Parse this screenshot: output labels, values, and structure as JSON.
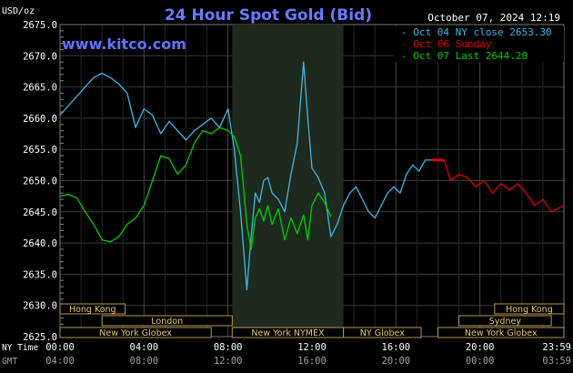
{
  "chart_data": {
    "type": "line",
    "title": "24 Hour Spot Gold (Bid)",
    "timestamp": "October 07, 2024 12:19",
    "watermark": "www.kitco.com",
    "ylabel": "USD/oz",
    "ylim": [
      2625.0,
      2675.0
    ],
    "yticks": [
      "2675.0",
      "2670.0",
      "2665.0",
      "2660.0",
      "2655.0",
      "2650.0",
      "2645.0",
      "2640.0",
      "2635.0",
      "2630.0",
      "2625.0"
    ],
    "xlim": [
      0,
      24
    ],
    "x_axis_rows": [
      {
        "label": "NY Time",
        "ticks": [
          "00:00",
          "04:00",
          "08:00",
          "12:00",
          "16:00",
          "20:00",
          "23:59"
        ]
      },
      {
        "label": "GMT",
        "ticks": [
          "04:00",
          "08:00",
          "12:00",
          "16:00",
          "20:00",
          "00:00",
          "03:59"
        ]
      }
    ],
    "tick_hours": [
      0,
      4,
      8,
      12,
      16,
      20,
      23.983
    ],
    "highlight_band_hours": [
      8.2,
      13.5
    ],
    "legend_position": "top-right",
    "grid": true,
    "series": [
      {
        "name": "Oct 04 NY close 2653.30",
        "color": "#3ab8e8",
        "x": [
          0,
          0.4,
          0.8,
          1.2,
          1.6,
          2.0,
          2.4,
          2.8,
          3.2,
          3.6,
          4.0,
          4.4,
          4.8,
          5.2,
          5.6,
          6.0,
          6.4,
          6.8,
          7.2,
          7.6,
          8.0,
          8.3,
          8.6,
          8.9,
          9.1,
          9.3,
          9.5,
          9.7,
          9.9,
          10.1,
          10.4,
          10.7,
          11.0,
          11.3,
          11.6,
          11.8,
          12.0,
          12.3,
          12.6,
          12.9,
          13.2,
          13.5,
          13.8,
          14.1,
          14.4,
          14.7,
          15.0,
          15.3,
          15.6,
          15.9,
          16.2,
          16.5,
          16.8,
          17.1,
          17.4,
          17.7
        ],
        "y": [
          2660.5,
          2662,
          2663.5,
          2665,
          2666.5,
          2667.2,
          2666.5,
          2665.5,
          2664,
          2658.5,
          2661.5,
          2660.5,
          2657.5,
          2659.5,
          2658,
          2656.5,
          2658,
          2659,
          2660,
          2658.5,
          2661.5,
          2655,
          2645,
          2632.5,
          2641,
          2648,
          2646.5,
          2650,
          2650.5,
          2648,
          2647,
          2645,
          2651,
          2656,
          2669,
          2660,
          2652,
          2650.5,
          2648,
          2641,
          2643,
          2646,
          2648,
          2649,
          2647,
          2645,
          2644,
          2646,
          2648,
          2649,
          2648,
          2651,
          2652.5,
          2651.5,
          2653.3,
          2653.3
        ]
      },
      {
        "name": "Oct 06 Sunday",
        "color": "#e00000",
        "x": [
          17.7,
          17.8,
          18.3,
          18.6,
          19.0,
          19.4,
          19.8,
          20.2,
          20.6,
          21.0,
          21.4,
          21.8,
          22.2,
          22.6,
          23.0,
          23.4,
          23.7,
          24.0
        ],
        "y": [
          2653.3,
          2653.3,
          2653.3,
          2650,
          2651,
          2650.5,
          2649,
          2650,
          2648,
          2649.5,
          2648.5,
          2649.5,
          2648,
          2646,
          2647,
          2645,
          2645.5,
          2646
        ]
      },
      {
        "name": "Oct 07 Last 2644.20",
        "color": "#00d000",
        "x": [
          0,
          0.4,
          0.8,
          1.2,
          1.6,
          2.0,
          2.4,
          2.8,
          3.2,
          3.6,
          4.0,
          4.4,
          4.8,
          5.2,
          5.6,
          6.0,
          6.4,
          6.8,
          7.2,
          7.6,
          8.0,
          8.3,
          8.6,
          8.9,
          9.1,
          9.3,
          9.5,
          9.7,
          9.9,
          10.1,
          10.4,
          10.7,
          11.0,
          11.3,
          11.6,
          11.8,
          12.0,
          12.3,
          12.6,
          12.9
        ],
        "y": [
          2647.5,
          2647.8,
          2647.2,
          2645,
          2643,
          2640.5,
          2640.2,
          2641,
          2643,
          2644,
          2646,
          2650,
          2654,
          2653.5,
          2651,
          2652.5,
          2656,
          2658,
          2657.5,
          2658.5,
          2658,
          2657,
          2654,
          2643,
          2639,
          2644,
          2645.5,
          2643.5,
          2646,
          2643,
          2645.5,
          2640.5,
          2644,
          2641.5,
          2644.5,
          2640.5,
          2646,
          2648,
          2646.5,
          2644.2
        ]
      }
    ],
    "sessions": [
      {
        "label": "Hong Kong",
        "start": 0,
        "end": 3.1,
        "row": 0
      },
      {
        "label": "London",
        "start": 2.0,
        "end": 8.2,
        "row": 1
      },
      {
        "label": "New York Globex",
        "start": 0,
        "end": 7.2,
        "row": 2
      },
      {
        "label": "New York NYMEX",
        "start": 8.2,
        "end": 13.5,
        "row": 2
      },
      {
        "label": "NY Globex",
        "start": 13.5,
        "end": 17.2,
        "row": 2
      },
      {
        "label": "Hong Kong",
        "start": 20.7,
        "end": 24,
        "row": 0
      },
      {
        "label": "Sydney",
        "start": 19.0,
        "end": 23.4,
        "row": 1
      },
      {
        "label": "New York Globex",
        "start": 18.0,
        "end": 24,
        "row": 2
      }
    ]
  }
}
